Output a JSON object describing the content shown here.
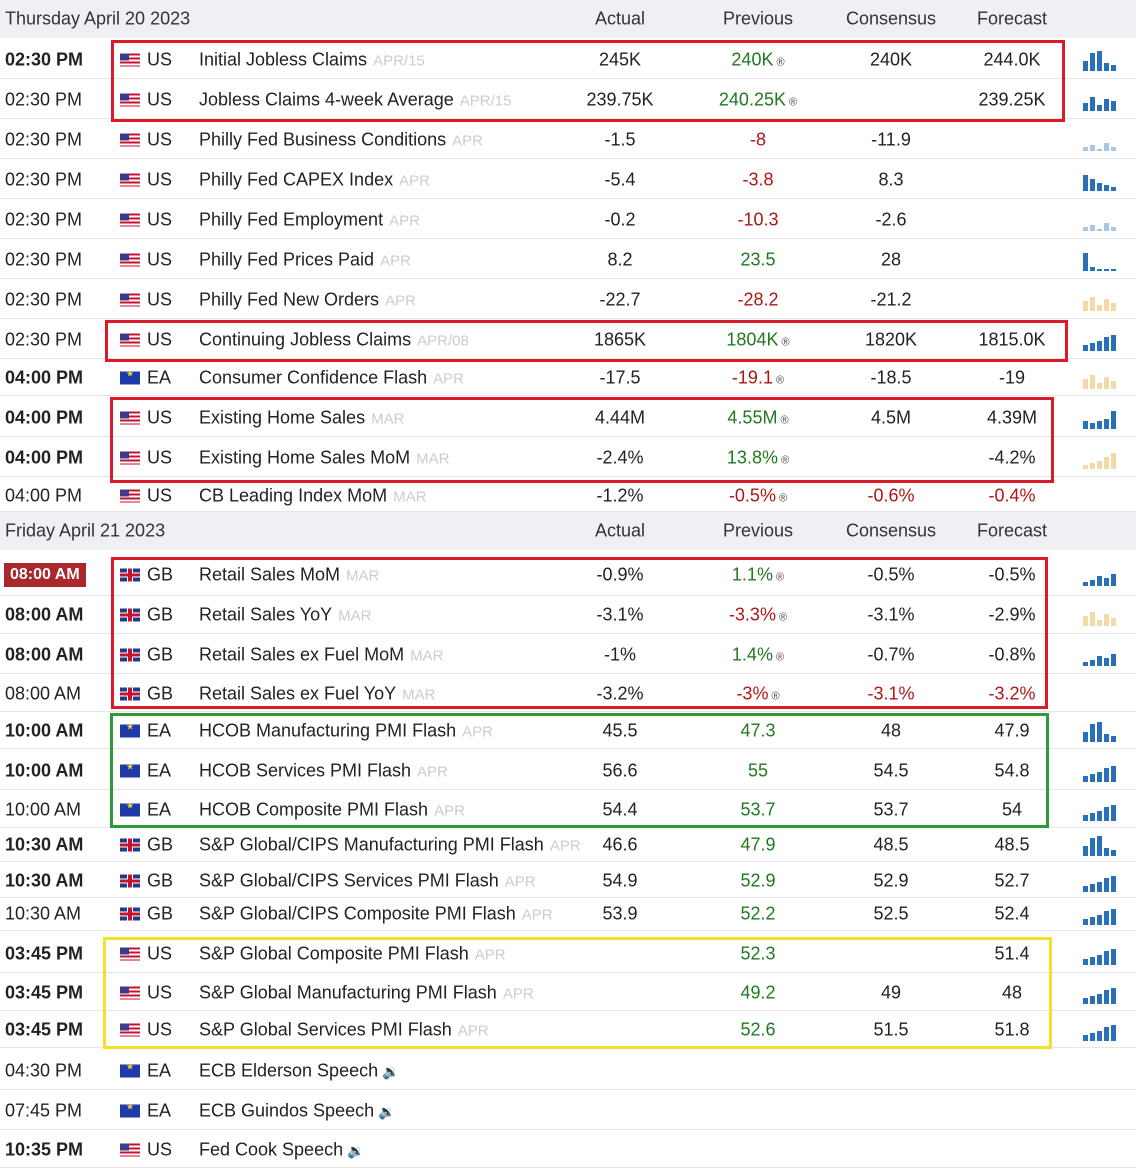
{
  "columns": {
    "actual": "Actual",
    "previous": "Previous",
    "consensus": "Consensus",
    "forecast": "Forecast"
  },
  "days": [
    {
      "date": "Thursday April 20 2023",
      "rows": [
        {
          "time": "02:30 PM",
          "bold": true,
          "flag": "us",
          "country": "US",
          "name": "Initial Jobless Claims",
          "period": "APR/15",
          "actual": "245K",
          "previous": "240K",
          "prev_color": "green",
          "prev_rev": "®",
          "consensus": "240K",
          "forecast": "244.0K",
          "forecast_color": "",
          "spark": "mixed"
        },
        {
          "time": "02:30 PM",
          "bold": false,
          "flag": "us",
          "country": "US",
          "name": "Jobless Claims 4-week Average",
          "period": "APR/15",
          "actual": "239.75K",
          "previous": "240.25K",
          "prev_color": "green",
          "prev_rev": "®",
          "consensus": "",
          "forecast": "239.25K",
          "forecast_color": "",
          "spark": "mixed2"
        },
        {
          "time": "02:30 PM",
          "bold": false,
          "flag": "us",
          "country": "US",
          "name": "Philly Fed Business Conditions",
          "period": "APR",
          "actual": "-1.5",
          "previous": "-8",
          "prev_color": "red",
          "prev_rev": "",
          "consensus": "-11.9",
          "forecast": "",
          "forecast_color": "",
          "spark": "neg"
        },
        {
          "time": "02:30 PM",
          "bold": false,
          "flag": "us",
          "country": "US",
          "name": "Philly Fed CAPEX Index",
          "period": "APR",
          "actual": "-5.4",
          "previous": "-3.8",
          "prev_color": "red",
          "prev_rev": "",
          "consensus": "8.3",
          "forecast": "",
          "forecast_color": "",
          "spark": "down"
        },
        {
          "time": "02:30 PM",
          "bold": false,
          "flag": "us",
          "country": "US",
          "name": "Philly Fed Employment",
          "period": "APR",
          "actual": "-0.2",
          "previous": "-10.3",
          "prev_color": "red",
          "prev_rev": "",
          "consensus": "-2.6",
          "forecast": "",
          "forecast_color": "",
          "spark": "neg"
        },
        {
          "time": "02:30 PM",
          "bold": false,
          "flag": "us",
          "country": "US",
          "name": "Philly Fed Prices Paid",
          "period": "APR",
          "actual": "8.2",
          "previous": "23.5",
          "prev_color": "green",
          "prev_rev": "",
          "consensus": "28",
          "forecast": "",
          "forecast_color": "",
          "spark": "drop"
        },
        {
          "time": "02:30 PM",
          "bold": false,
          "flag": "us",
          "country": "US",
          "name": "Philly Fed New Orders",
          "period": "APR",
          "actual": "-22.7",
          "previous": "-28.2",
          "prev_color": "red",
          "prev_rev": "",
          "consensus": "-21.2",
          "forecast": "",
          "forecast_color": "",
          "spark": "yneg"
        },
        {
          "time": "02:30 PM",
          "bold": false,
          "flag": "us",
          "country": "US",
          "name": "Continuing Jobless Claims",
          "period": "APR/08",
          "actual": "1865K",
          "previous": "1804K",
          "prev_color": "green",
          "prev_rev": "®",
          "consensus": "1820K",
          "forecast": "1815.0K",
          "forecast_color": "",
          "spark": "up"
        },
        {
          "time": "04:00 PM",
          "bold": true,
          "flag": "ea",
          "country": "EA",
          "name": "Consumer Confidence Flash",
          "period": "APR",
          "actual": "-17.5",
          "previous": "-19.1",
          "prev_color": "red",
          "prev_rev": "®",
          "consensus": "-18.5",
          "forecast": "-19",
          "forecast_color": "",
          "spark": "yneg"
        },
        {
          "time": "04:00 PM",
          "bold": true,
          "flag": "us",
          "country": "US",
          "name": "Existing Home Sales",
          "period": "MAR",
          "actual": "4.44M",
          "previous": "4.55M",
          "prev_color": "green",
          "prev_rev": "®",
          "consensus": "4.5M",
          "forecast": "4.39M",
          "forecast_color": "",
          "spark": "up2"
        },
        {
          "time": "04:00 PM",
          "bold": true,
          "flag": "us",
          "country": "US",
          "name": "Existing Home Sales MoM",
          "period": "MAR",
          "actual": "-2.4%",
          "previous": "13.8%",
          "prev_color": "green",
          "prev_rev": "®",
          "consensus": "",
          "forecast": "-4.2%",
          "forecast_color": "",
          "spark": "ymix"
        },
        {
          "time": "04:00 PM",
          "bold": false,
          "flag": "us",
          "country": "US",
          "name": "CB Leading Index MoM",
          "period": "MAR",
          "actual": "-1.2%",
          "previous": "-0.5%",
          "prev_color": "red",
          "prev_rev": "®",
          "consensus": "-0.6%",
          "forecast": "-0.4%",
          "forecast_color": "red",
          "spark": ""
        }
      ]
    },
    {
      "date": "Friday April 21 2023",
      "rows": [
        {
          "time": "08:00 AM",
          "bold": true,
          "badge": true,
          "flag": "gb",
          "country": "GB",
          "name": "Retail Sales MoM",
          "period": "MAR",
          "actual": "-0.9%",
          "previous": "1.1%",
          "prev_color": "green",
          "prev_rev": "®",
          "consensus": "-0.5%",
          "forecast": "-0.5%",
          "forecast_color": "",
          "spark": "mixed3"
        },
        {
          "time": "08:00 AM",
          "bold": true,
          "flag": "gb",
          "country": "GB",
          "name": "Retail Sales YoY",
          "period": "MAR",
          "actual": "-3.1%",
          "previous": "-3.3%",
          "prev_color": "red",
          "prev_rev": "®",
          "consensus": "-3.1%",
          "forecast": "-2.9%",
          "forecast_color": "",
          "spark": "yneg"
        },
        {
          "time": "08:00 AM",
          "bold": true,
          "flag": "gb",
          "country": "GB",
          "name": "Retail Sales ex Fuel MoM",
          "period": "MAR",
          "actual": "-1%",
          "previous": "1.4%",
          "prev_color": "green",
          "prev_rev": "®",
          "consensus": "-0.7%",
          "forecast": "-0.8%",
          "forecast_color": "",
          "spark": "mixed3"
        },
        {
          "time": "08:00 AM",
          "bold": false,
          "flag": "gb",
          "country": "GB",
          "name": "Retail Sales ex Fuel YoY",
          "period": "MAR",
          "actual": "-3.2%",
          "previous": "-3%",
          "prev_color": "red",
          "prev_rev": "®",
          "consensus": "-3.1%",
          "forecast": "-3.2%",
          "forecast_color": "red",
          "spark": ""
        },
        {
          "time": "10:00 AM",
          "bold": true,
          "flag": "ea",
          "country": "EA",
          "name": "HCOB Manufacturing PMI Flash",
          "period": "APR",
          "actual": "45.5",
          "previous": "47.3",
          "prev_color": "green",
          "prev_rev": "",
          "consensus": "48",
          "forecast": "47.9",
          "forecast_color": "",
          "spark": "mixed"
        },
        {
          "time": "10:00 AM",
          "bold": true,
          "flag": "ea",
          "country": "EA",
          "name": "HCOB Services PMI Flash",
          "period": "APR",
          "actual": "56.6",
          "previous": "55",
          "prev_color": "green",
          "prev_rev": "",
          "consensus": "54.5",
          "forecast": "54.8",
          "forecast_color": "",
          "spark": "up"
        },
        {
          "time": "10:00 AM",
          "bold": false,
          "flag": "ea",
          "country": "EA",
          "name": "HCOB Composite PMI Flash",
          "period": "APR",
          "actual": "54.4",
          "previous": "53.7",
          "prev_color": "green",
          "prev_rev": "",
          "consensus": "53.7",
          "forecast": "54",
          "forecast_color": "",
          "spark": "up"
        },
        {
          "time": "10:30 AM",
          "bold": true,
          "flag": "gb",
          "country": "GB",
          "name": "S&P Global/CIPS Manufacturing PMI Flash",
          "period": "APR",
          "actual": "46.6",
          "previous": "47.9",
          "prev_color": "green",
          "prev_rev": "",
          "consensus": "48.5",
          "forecast": "48.5",
          "forecast_color": "",
          "spark": "mixed"
        },
        {
          "time": "10:30 AM",
          "bold": true,
          "flag": "gb",
          "country": "GB",
          "name": "S&P Global/CIPS Services PMI Flash",
          "period": "APR",
          "actual": "54.9",
          "previous": "52.9",
          "prev_color": "green",
          "prev_rev": "",
          "consensus": "52.9",
          "forecast": "52.7",
          "forecast_color": "",
          "spark": "up"
        },
        {
          "time": "10:30 AM",
          "bold": false,
          "flag": "gb",
          "country": "GB",
          "name": "S&P Global/CIPS Composite PMI Flash",
          "period": "APR",
          "actual": "53.9",
          "previous": "52.2",
          "prev_color": "green",
          "prev_rev": "",
          "consensus": "52.5",
          "forecast": "52.4",
          "forecast_color": "",
          "spark": "up"
        },
        {
          "time": "03:45 PM",
          "bold": true,
          "flag": "us",
          "country": "US",
          "name": "S&P Global Composite PMI Flash",
          "period": "APR",
          "actual": "",
          "previous": "52.3",
          "prev_color": "green",
          "prev_rev": "",
          "consensus": "",
          "forecast": "51.4",
          "forecast_color": "",
          "spark": "up"
        },
        {
          "time": "03:45 PM",
          "bold": true,
          "flag": "us",
          "country": "US",
          "name": "S&P Global Manufacturing PMI Flash",
          "period": "APR",
          "actual": "",
          "previous": "49.2",
          "prev_color": "green",
          "prev_rev": "",
          "consensus": "49",
          "forecast": "48",
          "forecast_color": "",
          "spark": "up"
        },
        {
          "time": "03:45 PM",
          "bold": true,
          "flag": "us",
          "country": "US",
          "name": "S&P Global Services PMI Flash",
          "period": "APR",
          "actual": "",
          "previous": "52.6",
          "prev_color": "green",
          "prev_rev": "",
          "consensus": "51.5",
          "forecast": "51.8",
          "forecast_color": "",
          "spark": "up"
        },
        {
          "time": "04:30 PM",
          "bold": false,
          "flag": "ea",
          "country": "EA",
          "name": "ECB Elderson Speech",
          "period": "",
          "speech": true,
          "actual": "",
          "previous": "",
          "prev_color": "",
          "prev_rev": "",
          "consensus": "",
          "forecast": "",
          "forecast_color": "",
          "spark": ""
        },
        {
          "time": "07:45 PM",
          "bold": false,
          "flag": "ea",
          "country": "EA",
          "name": "ECB Guindos Speech",
          "period": "",
          "speech": true,
          "actual": "",
          "previous": "",
          "prev_color": "",
          "prev_rev": "",
          "consensus": "",
          "forecast": "",
          "forecast_color": "",
          "spark": ""
        },
        {
          "time": "10:35 PM",
          "bold": true,
          "flag": "us",
          "country": "US",
          "name": "Fed Cook Speech",
          "period": "",
          "speech": true,
          "actual": "",
          "previous": "",
          "prev_color": "",
          "prev_rev": "",
          "consensus": "",
          "forecast": "",
          "forecast_color": "",
          "spark": ""
        }
      ]
    }
  ],
  "highlight_colors": {
    "red": "#d91b2a",
    "green": "#2d9a3a",
    "yellow": "#f2e22a"
  },
  "icons": {
    "revised": "®",
    "speaker": "speaker-icon"
  }
}
